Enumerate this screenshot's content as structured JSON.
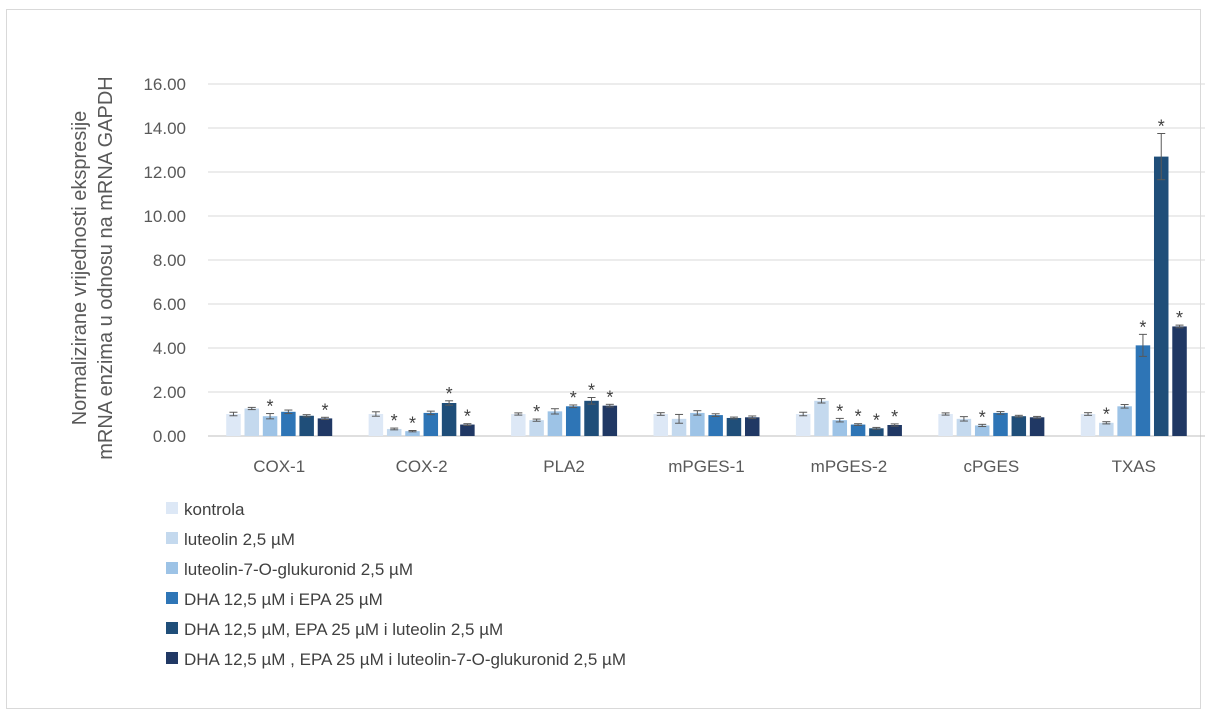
{
  "chart_data": {
    "type": "bar",
    "ylabel_lines": [
      "Normalizirane vrijednosti ekspresije",
      "mRNA enzima u odnosu na mRNA GAPDH"
    ],
    "ylim": [
      0,
      16
    ],
    "yticks": [
      "0.00",
      "2.00",
      "4.00",
      "6.00",
      "8.00",
      "10.00",
      "12.00",
      "14.00",
      "16.00"
    ],
    "grid": true,
    "legend_position": "bottom-left",
    "categories": [
      "COX-1",
      "COX-2",
      "PLA2",
      "mPGES-1",
      "mPGES-2",
      "cPGES",
      "TXAS"
    ],
    "series": [
      {
        "name": "kontrola",
        "color": "#dde8f6",
        "values": [
          1.0,
          1.0,
          1.0,
          1.0,
          1.0,
          1.0,
          1.0
        ],
        "errors": [
          0.08,
          0.1,
          0.05,
          0.06,
          0.08,
          0.05,
          0.06
        ],
        "significant": [
          false,
          false,
          false,
          false,
          false,
          false,
          false
        ]
      },
      {
        "name": "luteolin 2,5 µM",
        "color": "#c4d9ee",
        "values": [
          1.25,
          0.32,
          0.72,
          0.78,
          1.6,
          0.78,
          0.6
        ],
        "errors": [
          0.05,
          0.04,
          0.05,
          0.2,
          0.1,
          0.1,
          0.05
        ],
        "significant": [
          false,
          true,
          true,
          false,
          false,
          false,
          true
        ]
      },
      {
        "name": "luteolin-7-O-glukuronid 2,5 µM",
        "color": "#9dc3e6",
        "values": [
          0.9,
          0.22,
          1.12,
          1.05,
          0.72,
          0.48,
          1.35
        ],
        "errors": [
          0.12,
          0.03,
          0.12,
          0.1,
          0.08,
          0.05,
          0.08
        ],
        "significant": [
          true,
          true,
          false,
          false,
          true,
          true,
          false
        ]
      },
      {
        "name": "DHA 12,5 µM i EPA 25 µM",
        "color": "#2e75b6",
        "values": [
          1.1,
          1.05,
          1.35,
          0.95,
          0.52,
          1.05,
          4.12
        ],
        "errors": [
          0.08,
          0.08,
          0.06,
          0.06,
          0.04,
          0.06,
          0.5
        ],
        "significant": [
          false,
          false,
          true,
          false,
          true,
          false,
          true
        ]
      },
      {
        "name": "DHA 12,5 µM, EPA 25 µM i luteolin 2,5 µM",
        "color": "#1f4e79",
        "values": [
          0.92,
          1.5,
          1.6,
          0.82,
          0.35,
          0.9,
          12.7
        ],
        "errors": [
          0.05,
          0.1,
          0.15,
          0.04,
          0.04,
          0.04,
          1.05
        ],
        "significant": [
          false,
          true,
          true,
          false,
          true,
          false,
          true
        ]
      },
      {
        "name": "DHA 12,5 µM , EPA 25 µM i luteolin-7-O-glukuronid 2,5 µM",
        "color": "#203864",
        "values": [
          0.8,
          0.52,
          1.38,
          0.85,
          0.5,
          0.85,
          4.98
        ],
        "errors": [
          0.05,
          0.04,
          0.06,
          0.06,
          0.05,
          0.04,
          0.06
        ],
        "significant": [
          true,
          true,
          true,
          false,
          true,
          false,
          true
        ]
      }
    ],
    "significance_marker": "*"
  }
}
